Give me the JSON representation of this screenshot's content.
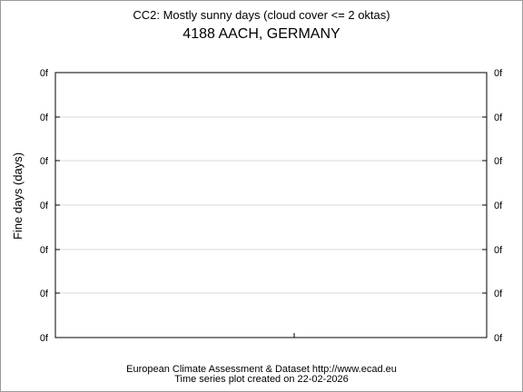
{
  "chart_data": {
    "type": "line",
    "title": "CC2: Mostly sunny days (cloud cover <= 2 oktas)",
    "subtitle": "4188 AACH, GERMANY",
    "ylabel": "Fine days (days)",
    "xlabel": "",
    "y_tick_labels": [
      "0f",
      "0f",
      "0f",
      "0f",
      "0f",
      "0f",
      "0f"
    ],
    "x_tick_labels": [],
    "series": [],
    "grid": true,
    "legend": "none"
  },
  "footer": {
    "source": "European Climate Assessment & Dataset  http://www.ecad.eu",
    "created": "Time series plot created on 22-02-2026"
  },
  "colors": {
    "grid": "#d8d8d8",
    "axis": "#000000"
  }
}
